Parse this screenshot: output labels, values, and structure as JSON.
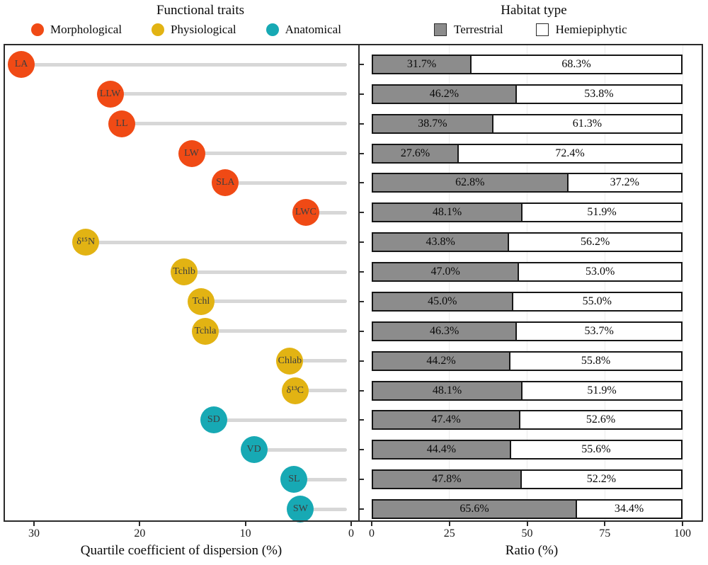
{
  "legend": {
    "functional_traits": {
      "title": "Functional traits",
      "items": [
        {
          "label": "Morphological",
          "color": "#F04A15"
        },
        {
          "label": "Physiological",
          "color": "#E2B313"
        },
        {
          "label": "Anatomical",
          "color": "#17A9B4"
        }
      ]
    },
    "habitat_type": {
      "title": "Habitat type",
      "items": [
        {
          "label": "Terrestrial",
          "color": "#8C8C8C"
        },
        {
          "label": "Hemiepiphytic",
          "color": "#FFFFFF"
        }
      ]
    }
  },
  "chart_data": [
    {
      "type": "scatter",
      "subtype": "lollipop",
      "title": "",
      "xlabel": "Quartile coefficient of dispersion (%)",
      "x_ticks": [
        30,
        20,
        10,
        0
      ],
      "x_axis_reversed": true,
      "xlim": [
        33,
        0
      ],
      "series_color_key": "trait_type",
      "points": [
        {
          "label": "LA",
          "trait_type": "Morphological",
          "qcd": 31.2
        },
        {
          "label": "LLW",
          "trait_type": "Morphological",
          "qcd": 22.8
        },
        {
          "label": "LL",
          "trait_type": "Morphological",
          "qcd": 21.7
        },
        {
          "label": "LW",
          "trait_type": "Morphological",
          "qcd": 15.1
        },
        {
          "label": "SLA",
          "trait_type": "Morphological",
          "qcd": 11.9
        },
        {
          "label": "LWC",
          "trait_type": "Morphological",
          "qcd": 4.3
        },
        {
          "label": "δ¹⁵N",
          "trait_type": "Physiological",
          "qcd": 25.1
        },
        {
          "label": "Tchlb",
          "trait_type": "Physiological",
          "qcd": 15.8
        },
        {
          "label": "Tchl",
          "trait_type": "Physiological",
          "qcd": 14.2
        },
        {
          "label": "Tchla",
          "trait_type": "Physiological",
          "qcd": 13.8
        },
        {
          "label": "Chlab",
          "trait_type": "Physiological",
          "qcd": 5.8
        },
        {
          "label": "δ¹³C",
          "trait_type": "Physiological",
          "qcd": 5.3
        },
        {
          "label": "SD",
          "trait_type": "Anatomical",
          "qcd": 13.0
        },
        {
          "label": "VD",
          "trait_type": "Anatomical",
          "qcd": 9.2
        },
        {
          "label": "SL",
          "trait_type": "Anatomical",
          "qcd": 5.4
        },
        {
          "label": "SW",
          "trait_type": "Anatomical",
          "qcd": 4.8
        }
      ]
    },
    {
      "type": "bar",
      "subtype": "stacked-horizontal",
      "title": "",
      "xlabel": "Ratio (%)",
      "x_ticks": [
        0,
        25,
        50,
        75,
        100
      ],
      "xlim": [
        0,
        100
      ],
      "grid": "light vertical gridlines at 25/50/75/100",
      "categories": [
        "LA",
        "LLW",
        "LL",
        "LW",
        "SLA",
        "LWC",
        "δ¹⁵N",
        "Tchlb",
        "Tchl",
        "Tchla",
        "Chlab",
        "δ¹³C",
        "SD",
        "VD",
        "SL",
        "SW"
      ],
      "series": [
        {
          "name": "Terrestrial",
          "values": [
            31.7,
            46.2,
            38.7,
            27.6,
            62.8,
            48.1,
            43.8,
            47.0,
            45.0,
            46.3,
            44.2,
            48.1,
            47.4,
            44.4,
            47.8,
            65.6
          ]
        },
        {
          "name": "Hemiepiphytic",
          "values": [
            68.3,
            53.8,
            61.3,
            72.4,
            37.2,
            51.9,
            56.2,
            53.0,
            55.0,
            53.7,
            55.8,
            51.9,
            52.6,
            55.6,
            52.2,
            34.4
          ]
        }
      ]
    }
  ],
  "axes": {
    "left_title": "Quartile coefficient of dispersion (%)",
    "right_title": "Ratio (%)",
    "left_ticks": [
      "30",
      "20",
      "10",
      "0"
    ],
    "right_ticks": [
      "0",
      "25",
      "50",
      "75",
      "100"
    ]
  },
  "colors": {
    "Morphological": "#F04A15",
    "Physiological": "#E2B313",
    "Anatomical": "#17A9B4",
    "terrestrial_fill": "#8C8C8C",
    "hemiepiphytic_fill": "#FFFFFF",
    "stem": "#D7D7D7",
    "frame": "#2B2B2B",
    "bar_border": "#161616"
  }
}
